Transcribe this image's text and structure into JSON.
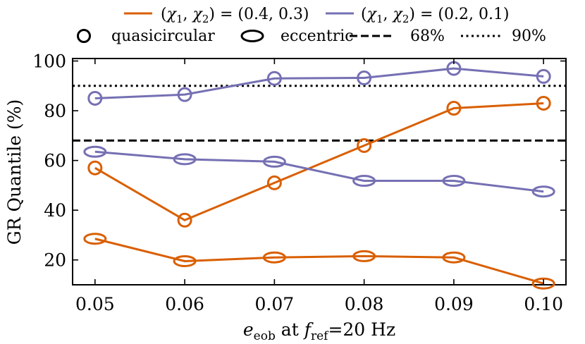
{
  "chart_data": {
    "type": "line",
    "xlabel_parts": {
      "e": "e",
      "e_sub": "eob",
      "at": " at ",
      "f": "f",
      "f_sub": "ref",
      "rest": "=20 Hz"
    },
    "ylabel": "GR Quantile (%)",
    "x": [
      0.05,
      0.06,
      0.07,
      0.08,
      0.09,
      0.1
    ],
    "x_tick_labels": [
      "0.05",
      "0.06",
      "0.07",
      "0.08",
      "0.09",
      "0.10"
    ],
    "y_ticks": [
      20,
      40,
      60,
      80,
      100
    ],
    "y_tick_labels": [
      "20",
      "40",
      "60",
      "80",
      "100"
    ],
    "xlim": [
      0.0475,
      0.1025
    ],
    "ylim": [
      10,
      101
    ],
    "hlines": [
      {
        "name": "68%",
        "value": 68,
        "style": "dashed"
      },
      {
        "name": "90%",
        "value": 90,
        "style": "dotted"
      }
    ],
    "series": [
      {
        "name": "(χ1,χ2)=(0.4,0.3) quasicircular",
        "color": "#D95F02",
        "marker": "circle",
        "values": [
          57,
          36,
          51,
          66,
          81,
          83
        ]
      },
      {
        "name": "(χ1,χ2)=(0.4,0.3) eccentric",
        "color": "#D95F02",
        "marker": "ellipse",
        "values": [
          28.5,
          19.5,
          21,
          21.5,
          21,
          10.5
        ]
      },
      {
        "name": "(χ1,χ2)=(0.2,0.1) quasicircular",
        "color": "#7570B3",
        "marker": "circle",
        "values": [
          85,
          86.5,
          93,
          93.2,
          97,
          93.8
        ]
      },
      {
        "name": "(χ1,χ2)=(0.2,0.1) eccentric",
        "color": "#7570B3",
        "marker": "ellipse",
        "values": [
          63.5,
          60.5,
          59.5,
          51.8,
          51.8,
          47.5
        ]
      }
    ],
    "legend": {
      "spin_entries": [
        {
          "color": "#D95F02",
          "label": "(χ1, χ2) = (0.4, 0.3)",
          "chi_vals": "(0.4, 0.3)"
        },
        {
          "color": "#7570B3",
          "label": "(χ1, χ2) = (0.2, 0.1)",
          "chi_vals": "(0.2, 0.1)"
        }
      ],
      "marker_entries": [
        {
          "label": "quasicircular"
        },
        {
          "label": "eccentric"
        }
      ],
      "line_entries": [
        {
          "label": "68%",
          "style": "dashed"
        },
        {
          "label": "90%",
          "style": "dotted"
        }
      ],
      "placement": "top"
    }
  }
}
